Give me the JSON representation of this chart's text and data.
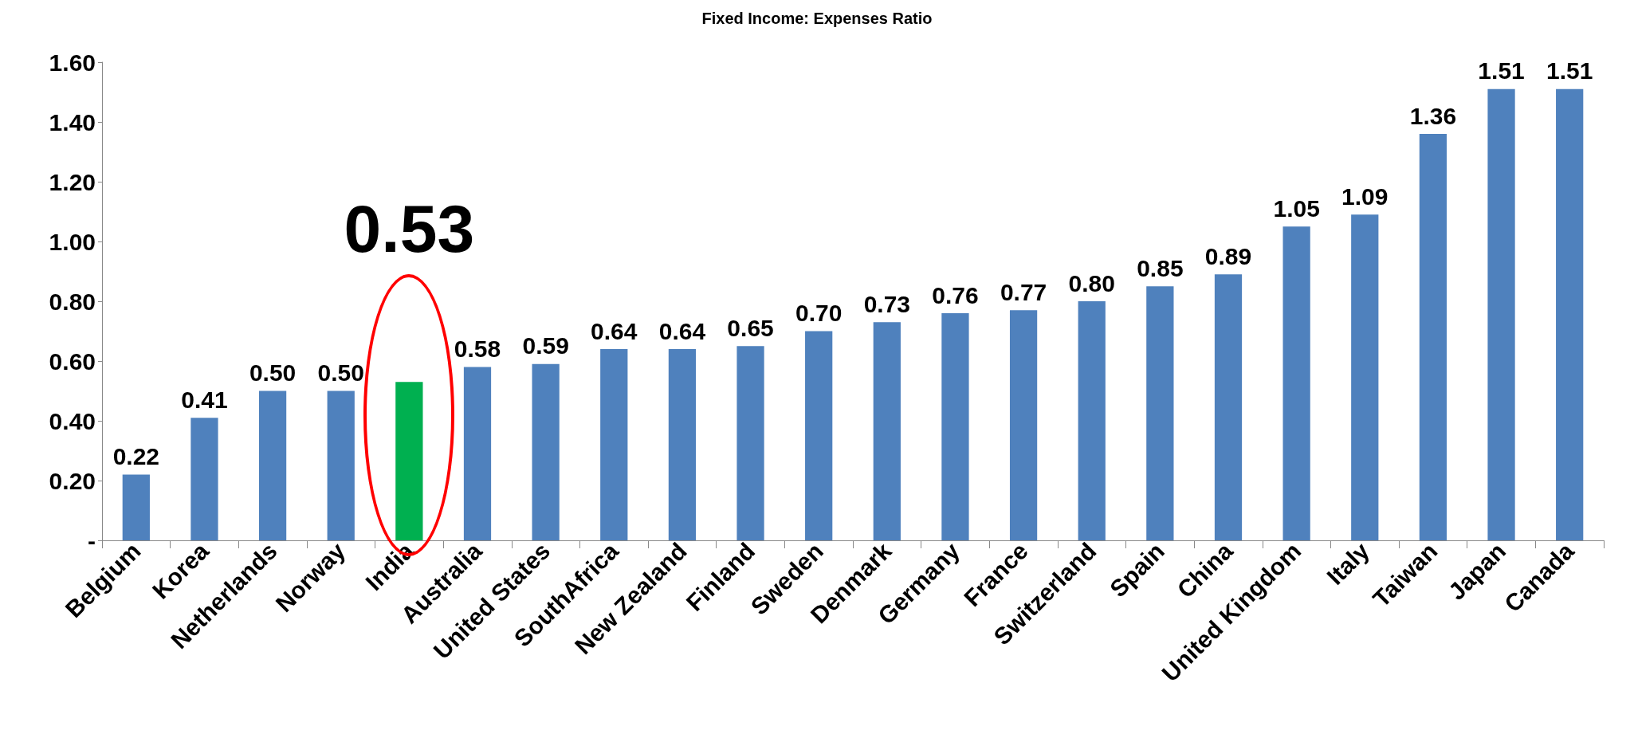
{
  "chart_data": {
    "type": "bar",
    "title": "Fixed Income: Expenses Ratio",
    "categories": [
      "Belgium",
      "Korea",
      "Netherlands",
      "Norway",
      "India",
      "Australia",
      "United States",
      "SouthAfrica",
      "New Zealand",
      "Finland",
      "Sweden",
      "Denmark",
      "Germany",
      "France",
      "Switzerland",
      "Spain",
      "China",
      "United Kingdom",
      "Italy",
      "Taiwan",
      "Japan",
      "Canada"
    ],
    "values": [
      0.22,
      0.41,
      0.5,
      0.5,
      0.53,
      0.58,
      0.59,
      0.64,
      0.64,
      0.65,
      0.7,
      0.73,
      0.76,
      0.77,
      0.8,
      0.85,
      0.89,
      1.05,
      1.09,
      1.36,
      1.51,
      1.51
    ],
    "colors": [
      "#4f81bd",
      "#4f81bd",
      "#4f81bd",
      "#4f81bd",
      "#00b050",
      "#4f81bd",
      "#4f81bd",
      "#4f81bd",
      "#4f81bd",
      "#4f81bd",
      "#4f81bd",
      "#4f81bd",
      "#4f81bd",
      "#4f81bd",
      "#4f81bd",
      "#4f81bd",
      "#4f81bd",
      "#4f81bd",
      "#4f81bd",
      "#4f81bd",
      "#4f81bd",
      "#4f81bd"
    ],
    "value_labels": [
      "0.22",
      "0.41",
      "0.50",
      "0.50",
      "0.53",
      "0.58",
      "0.59",
      "0.64",
      "0.64",
      "0.65",
      "0.70",
      "0.73",
      "0.76",
      "0.77",
      "0.80",
      "0.85",
      "0.89",
      "1.05",
      "1.09",
      "1.36",
      "1.51",
      "1.51"
    ],
    "ylim": [
      0,
      1.6
    ],
    "yticks": [
      {
        "value": 0,
        "label": "-"
      },
      {
        "value": 0.2,
        "label": "0.20"
      },
      {
        "value": 0.4,
        "label": "0.40"
      },
      {
        "value": 0.6,
        "label": "0.60"
      },
      {
        "value": 0.8,
        "label": "0.80"
      },
      {
        "value": 1.0,
        "label": "1.00"
      },
      {
        "value": 1.2,
        "label": "1.20"
      },
      {
        "value": 1.4,
        "label": "1.40"
      },
      {
        "value": 1.6,
        "label": "1.60"
      }
    ],
    "grid": false
  }
}
